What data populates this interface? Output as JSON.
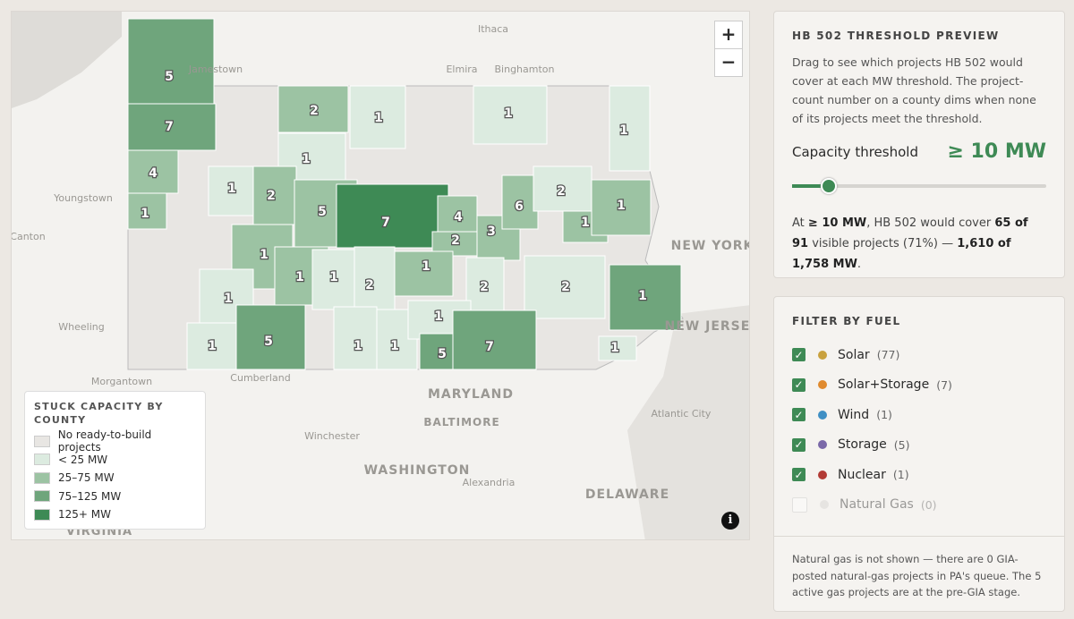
{
  "map": {
    "zoom_in": "+",
    "zoom_out": "−",
    "info": "i",
    "places": [
      "Ithaca",
      "Elmira",
      "Binghamton",
      "Jamestown",
      "Youngstown",
      "Canton",
      "Wheeling",
      "Morgantown",
      "Cumberland",
      "MARYLAND",
      "BALTIMORE",
      "Winchester",
      "WASHINGTON",
      "Alexandria",
      "DELAWARE",
      "VIRGINIA",
      "NEW YORK",
      "NEW JERSEY",
      "Atlantic City"
    ],
    "counties": [
      {
        "count": "5",
        "color": "#6fa57c"
      },
      {
        "count": "7",
        "color": "#6fa57c"
      },
      {
        "count": "2",
        "color": "#9cc3a3"
      },
      {
        "count": "1",
        "color": "#dcebe0"
      },
      {
        "count": "1",
        "color": "#dcebe0"
      },
      {
        "count": "1",
        "color": "#dcebe0"
      },
      {
        "count": "1",
        "color": "#dcebe0"
      },
      {
        "count": "4",
        "color": "#9cc3a3"
      },
      {
        "count": "1",
        "color": "#dcebe0"
      },
      {
        "count": "2",
        "color": "#9cc3a3"
      },
      {
        "count": "5",
        "color": "#9cc3a3"
      },
      {
        "count": "7",
        "color": "#3e8a55"
      },
      {
        "count": "1",
        "color": "#9cc3a3"
      },
      {
        "count": "4",
        "color": "#9cc3a3"
      },
      {
        "count": "2",
        "color": "#9cc3a3"
      },
      {
        "count": "3",
        "color": "#9cc3a3"
      },
      {
        "count": "6",
        "color": "#9cc3a3"
      },
      {
        "count": "2",
        "color": "#dcebe0"
      },
      {
        "count": "1",
        "color": "#9cc3a3"
      },
      {
        "count": "1",
        "color": "#9cc3a3"
      },
      {
        "count": "1",
        "color": "#9cc3a3"
      },
      {
        "count": "1",
        "color": "#9cc3a3"
      },
      {
        "count": "1",
        "color": "#dcebe0"
      },
      {
        "count": "2",
        "color": "#dcebe0"
      },
      {
        "count": "1",
        "color": "#9cc3a3"
      },
      {
        "count": "2",
        "color": "#dcebe0"
      },
      {
        "count": "2",
        "color": "#dcebe0"
      },
      {
        "count": "1",
        "color": "#6fa57c"
      },
      {
        "count": "1",
        "color": "#dcebe0"
      },
      {
        "count": "1",
        "color": "#dcebe0"
      },
      {
        "count": "5",
        "color": "#6fa57c"
      },
      {
        "count": "1",
        "color": "#dcebe0"
      },
      {
        "count": "1",
        "color": "#dcebe0"
      },
      {
        "count": "1",
        "color": "#dcebe0"
      },
      {
        "count": "5",
        "color": "#6fa57c"
      },
      {
        "count": "7",
        "color": "#6fa57c"
      },
      {
        "count": "1",
        "color": "#dcebe0"
      }
    ],
    "legend": {
      "title": "STUCK CAPACITY BY COUNTY",
      "items": [
        {
          "label": "No ready-to-build projects",
          "color": "#e8e6e3"
        },
        {
          "label": "< 25 MW",
          "color": "#dcebe0"
        },
        {
          "label": "25–75 MW",
          "color": "#9cc3a3"
        },
        {
          "label": "75–125 MW",
          "color": "#6fa57c"
        },
        {
          "label": "125+ MW",
          "color": "#3e8a55"
        }
      ]
    }
  },
  "threshold": {
    "title": "HB 502 THRESHOLD PREVIEW",
    "description": "Drag to see which projects HB 502 would cover at each MW threshold. The project-count number on a county dims when none of its projects meet the threshold.",
    "label": "Capacity threshold",
    "value_text": "≥ 10 MW",
    "summary": [
      "At ",
      "≥ 10 MW",
      ", HB 502 would cover ",
      "65 of 91",
      " visible projects (71%) — ",
      "1,610 of 1,758 MW",
      "."
    ]
  },
  "filter": {
    "title": "FILTER BY FUEL",
    "items": [
      {
        "name": "Solar",
        "count": "(77)",
        "color": "#c9a13e",
        "checked": true
      },
      {
        "name": "Solar+Storage",
        "count": "(7)",
        "color": "#e08a2e",
        "checked": true
      },
      {
        "name": "Wind",
        "count": "(1)",
        "color": "#3f8fc4",
        "checked": true
      },
      {
        "name": "Storage",
        "count": "(5)",
        "color": "#7a68a8",
        "checked": true
      },
      {
        "name": "Nuclear",
        "count": "(1)",
        "color": "#b23b35",
        "checked": true
      },
      {
        "name": "Natural Gas",
        "count": "(0)",
        "color": "#d6d4d1",
        "checked": false
      }
    ],
    "note": "Natural gas is not shown — there are 0 GIA-posted natural-gas projects in PA's queue. The 5 active gas projects are at the pre-GIA stage."
  }
}
